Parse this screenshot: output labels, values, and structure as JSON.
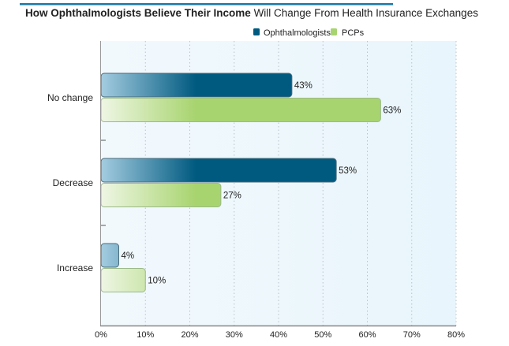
{
  "chart_data": {
    "type": "bar",
    "orientation": "horizontal",
    "title_bold": "How Ophthalmologists Believe Their Income",
    "title_rest": " Will Change From Health Insurance Exchanges",
    "categories": [
      "No change",
      "Decrease",
      "Increase"
    ],
    "series": [
      {
        "name": "Ophthalmologists",
        "values": [
          43,
          53,
          4
        ],
        "labels": [
          "43%",
          "53%",
          "4%"
        ],
        "color": "#005a80",
        "color_light": "#a4cce0"
      },
      {
        "name": "PCPs",
        "values": [
          63,
          27,
          10
        ],
        "labels": [
          "63%",
          "27%",
          "10%"
        ],
        "color": "#a8d46f",
        "color_light": "#eef6e4"
      }
    ],
    "xlim": [
      0,
      80
    ],
    "xticks": [
      "0%",
      "10%",
      "20%",
      "30%",
      "40%",
      "50%",
      "60%",
      "70%",
      "80%"
    ],
    "grid": true,
    "legend": "top-right",
    "accent_color": "#1a7aa8"
  }
}
